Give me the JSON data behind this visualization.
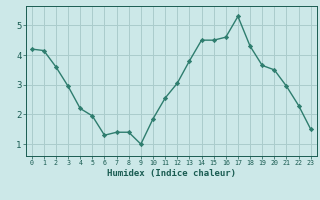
{
  "x": [
    0,
    1,
    2,
    3,
    4,
    5,
    6,
    7,
    8,
    9,
    10,
    11,
    12,
    13,
    14,
    15,
    16,
    17,
    18,
    19,
    20,
    21,
    22,
    23
  ],
  "y": [
    4.2,
    4.15,
    3.6,
    2.95,
    2.2,
    1.95,
    1.3,
    1.4,
    1.4,
    1.0,
    1.85,
    2.55,
    3.05,
    3.8,
    4.5,
    4.5,
    4.6,
    5.3,
    4.3,
    3.65,
    3.5,
    2.95,
    2.3,
    1.5
  ],
  "xlabel": "Humidex (Indice chaleur)",
  "ylim": [
    0.6,
    5.65
  ],
  "xlim": [
    -0.5,
    23.5
  ],
  "yticks": [
    1,
    2,
    3,
    4,
    5
  ],
  "xticks": [
    0,
    1,
    2,
    3,
    4,
    5,
    6,
    7,
    8,
    9,
    10,
    11,
    12,
    13,
    14,
    15,
    16,
    17,
    18,
    19,
    20,
    21,
    22,
    23
  ],
  "line_color": "#2e7d6e",
  "marker_color": "#2e7d6e",
  "bg_color": "#cce8e8",
  "grid_color": "#aacccc",
  "tick_label_color": "#1a5c52",
  "xlabel_color": "#1a5c52"
}
